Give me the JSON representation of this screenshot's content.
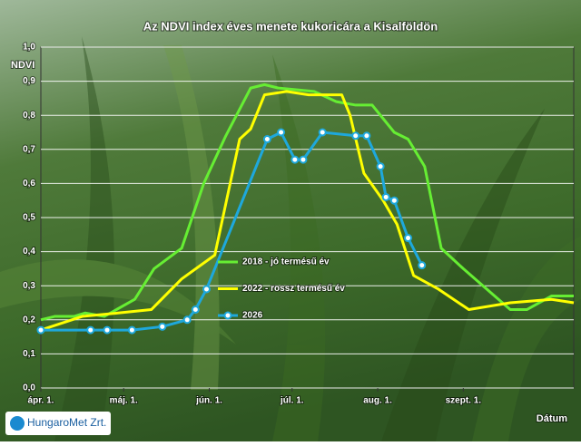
{
  "chart_data": {
    "type": "line",
    "title": "Az NDVI index éves menete kukoricára a Kisalföldön",
    "ylabel": "NDVI",
    "xlabel": "Dátum",
    "logo": "HungaroMet Zrt.",
    "legend": "center-left",
    "grid": true,
    "xlim": [
      0,
      193
    ],
    "ylim": [
      0,
      1
    ],
    "xticks": [
      {
        "value": 0,
        "label": "ápr. 1."
      },
      {
        "value": 30,
        "label": "máj. 1."
      },
      {
        "value": 61,
        "label": "jún. 1."
      },
      {
        "value": 91,
        "label": "júl. 1."
      },
      {
        "value": 122,
        "label": "aug. 1."
      },
      {
        "value": 153,
        "label": "szept. 1."
      }
    ],
    "yticks": [
      {
        "value": 0,
        "label": "0,0"
      },
      {
        "value": 0.1,
        "label": "0,1"
      },
      {
        "value": 0.2,
        "label": "0,2"
      },
      {
        "value": 0.3,
        "label": "0,3"
      },
      {
        "value": 0.4,
        "label": "0,4"
      },
      {
        "value": 0.5,
        "label": "0,5"
      },
      {
        "value": 0.6,
        "label": "0,6"
      },
      {
        "value": 0.7,
        "label": "0,7"
      },
      {
        "value": 0.8,
        "label": "0,8"
      },
      {
        "value": 0.9,
        "label": "0,9"
      },
      {
        "value": 1,
        "label": "1,0"
      }
    ],
    "series": [
      {
        "name": "2018 - jó termésű év",
        "color": "#66ee33",
        "markers": false,
        "x": [
          0,
          5,
          12,
          16,
          23,
          34,
          41,
          51,
          59,
          67,
          76,
          81,
          86,
          99,
          107,
          114,
          120,
          128,
          133,
          139,
          145,
          153,
          170,
          176,
          185,
          193
        ],
        "values": [
          0.2,
          0.21,
          0.21,
          0.22,
          0.21,
          0.26,
          0.35,
          0.41,
          0.6,
          0.74,
          0.88,
          0.89,
          0.88,
          0.87,
          0.84,
          0.83,
          0.83,
          0.75,
          0.73,
          0.65,
          0.41,
          0.35,
          0.23,
          0.23,
          0.27,
          0.27
        ]
      },
      {
        "name": "2022 - rossz termésű év",
        "color": "#ffff00",
        "markers": false,
        "x": [
          0,
          15,
          28,
          40,
          51,
          63,
          72,
          76,
          81,
          89,
          97,
          109,
          112,
          117,
          124,
          129,
          135,
          144,
          155,
          170,
          185,
          193
        ],
        "values": [
          0.17,
          0.21,
          0.22,
          0.23,
          0.32,
          0.39,
          0.73,
          0.76,
          0.86,
          0.87,
          0.86,
          0.86,
          0.8,
          0.63,
          0.55,
          0.48,
          0.33,
          0.29,
          0.23,
          0.25,
          0.26,
          0.25
        ]
      },
      {
        "name": "2026",
        "color": "#1ea8dc",
        "markers": true,
        "x": [
          0,
          18,
          24,
          33,
          44,
          53,
          56,
          60,
          82,
          87,
          92,
          95,
          102,
          114,
          118,
          123,
          125,
          128,
          133,
          138
        ],
        "values": [
          0.17,
          0.17,
          0.17,
          0.17,
          0.18,
          0.2,
          0.23,
          0.29,
          0.73,
          0.75,
          0.67,
          0.67,
          0.75,
          0.74,
          0.74,
          0.65,
          0.56,
          0.55,
          0.44,
          0.36
        ]
      }
    ]
  }
}
